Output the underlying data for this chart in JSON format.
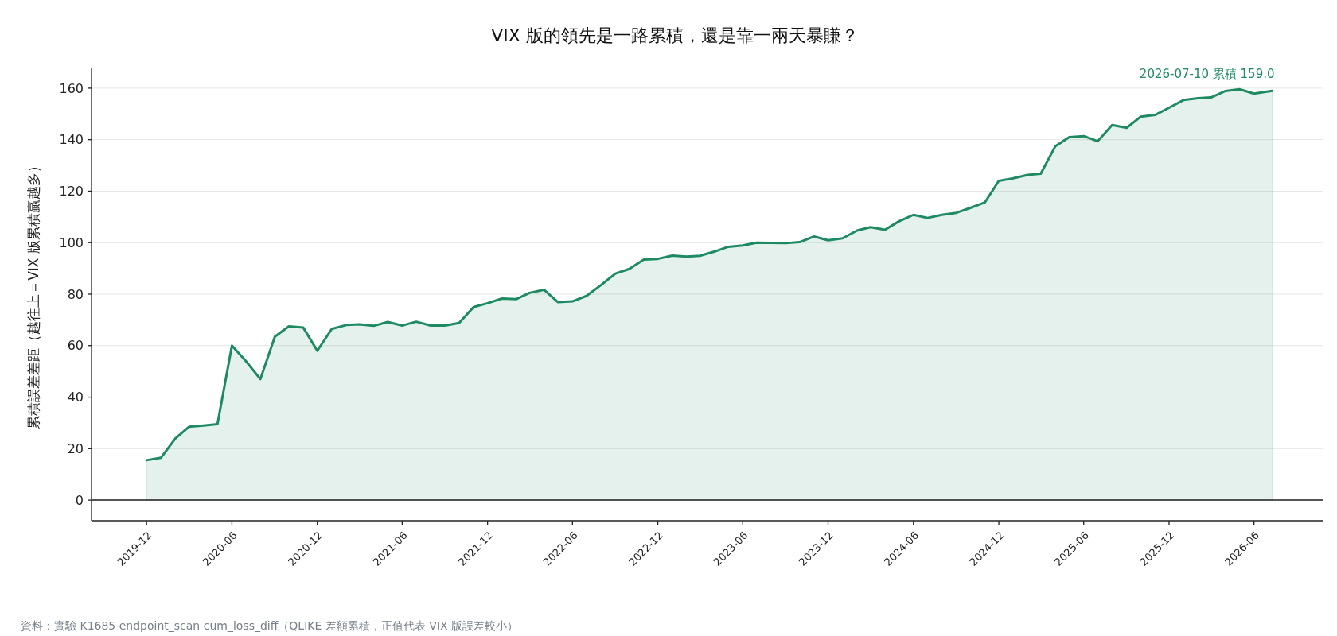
{
  "chart_data": {
    "type": "area",
    "title": "VIX 版的領先是一路累積，還是靠一兩天暴賺？",
    "ylabel": "累積誤差差距（越往上＝VIX 版累積贏越多）",
    "x": [
      "2019-12",
      "2020-01",
      "2020-02",
      "2020-03",
      "2020-04",
      "2020-05",
      "2020-06",
      "2020-07",
      "2020-08",
      "2020-09",
      "2020-10",
      "2020-11",
      "2020-12",
      "2021-01",
      "2021-02",
      "2021-03",
      "2021-04",
      "2021-05",
      "2021-06",
      "2021-07",
      "2021-08",
      "2021-09",
      "2021-10",
      "2021-11",
      "2021-12",
      "2022-01",
      "2022-02",
      "2022-03",
      "2022-04",
      "2022-05",
      "2022-06",
      "2022-07",
      "2022-08",
      "2022-09",
      "2022-10",
      "2022-11",
      "2022-12",
      "2023-01",
      "2023-02",
      "2023-03",
      "2023-04",
      "2023-05",
      "2023-06",
      "2023-07",
      "2023-08",
      "2023-09",
      "2023-10",
      "2023-11",
      "2023-12",
      "2024-01",
      "2024-02",
      "2024-03",
      "2024-04",
      "2024-05",
      "2024-06",
      "2024-07",
      "2024-08",
      "2024-09",
      "2024-10",
      "2024-11",
      "2024-12",
      "2025-01",
      "2025-02",
      "2025-03",
      "2025-04",
      "2025-05",
      "2025-06",
      "2025-07",
      "2025-08",
      "2025-09",
      "2025-10",
      "2025-11",
      "2025-12",
      "2026-01",
      "2026-02",
      "2026-03",
      "2026-04",
      "2026-05",
      "2026-06",
      "2026-07-10"
    ],
    "series": [
      {
        "color": "#1e8a62",
        "values": [
          15.5,
          16.5,
          24,
          28.5,
          29,
          29.5,
          60,
          54,
          47,
          63.5,
          67.5,
          67,
          58,
          66.5,
          68,
          68.3,
          67.7,
          69.2,
          67.8,
          69.3,
          67.8,
          67.8,
          68.8,
          75,
          76.5,
          78.3,
          78.1,
          80.5,
          81.7,
          76.9,
          77.2,
          79.3,
          83.5,
          88,
          89.8,
          93.4,
          93.7,
          95,
          94.6,
          94.9,
          96.5,
          98.4,
          98.9,
          100,
          99.9,
          99.8,
          100.2,
          102.4,
          100.9,
          101.7,
          104.7,
          106,
          105,
          108.3,
          110.8,
          109.6,
          110.8,
          111.6,
          113.5,
          115.6,
          124,
          125,
          126.3,
          126.8,
          137.4,
          141,
          141.4,
          139.4,
          145.7,
          144.6,
          148.9,
          149.6,
          152.4,
          155.4,
          156.1,
          156.4,
          158.9,
          159.6,
          157.9,
          159.0
        ]
      }
    ],
    "xlim": [
      "2019-08-05",
      "2026-10-28"
    ],
    "xticks": [
      "2019-12",
      "2020-06",
      "2020-12",
      "2021-06",
      "2021-12",
      "2022-06",
      "2022-12",
      "2023-06",
      "2023-12",
      "2024-06",
      "2024-12",
      "2025-06",
      "2025-12",
      "2026-06"
    ],
    "ylim": [
      -8,
      168
    ],
    "yticks": [
      0,
      20,
      40,
      60,
      80,
      100,
      120,
      140,
      160
    ],
    "grid": "y",
    "marker": "none",
    "ref_lines": [
      {
        "axis": "y",
        "value": 0,
        "color": "#222222"
      }
    ],
    "annotations": [
      {
        "text": "2026-07-10 累積 159.0",
        "x": "2026-07-10",
        "y": 159.0
      },
      "資料：實驗 K1685 endpoint_scan cum_loss_diff（QLIKE 差額累積，正值代表 VIX 版誤差較小）"
    ]
  }
}
